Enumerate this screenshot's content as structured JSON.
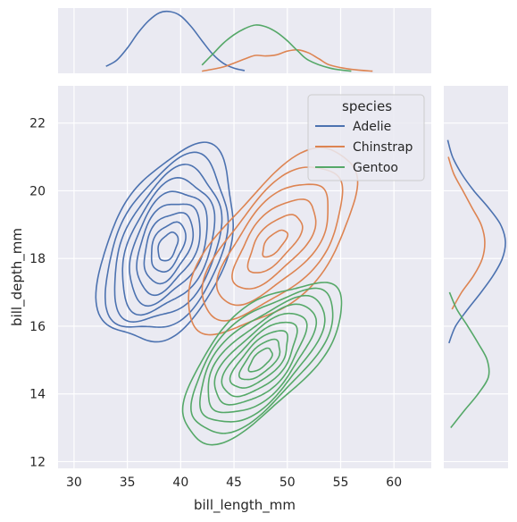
{
  "chart_data": {
    "type": "kde-jointplot",
    "xlabel": "bill_length_mm",
    "ylabel": "bill_depth_mm",
    "xlim": [
      28.5,
      63.5
    ],
    "ylim": [
      11.8,
      23.1
    ],
    "x_ticks": [
      30,
      35,
      40,
      45,
      50,
      55,
      60
    ],
    "y_ticks": [
      12,
      14,
      16,
      18,
      20,
      22
    ],
    "grid": true,
    "legend": {
      "title": "species",
      "placement": "top-right",
      "entries": [
        "Adelie",
        "Chinstrap",
        "Gentoo"
      ]
    },
    "series": [
      {
        "name": "Adelie",
        "color": "#4c72b0",
        "center": [
          38.8,
          18.35
        ],
        "sd": [
          2.65,
          1.2
        ],
        "corr": 0.4,
        "contour_levels": 9,
        "marginal_x": [
          [
            33,
            0.1
          ],
          [
            34,
            0.2
          ],
          [
            35,
            0.4
          ],
          [
            36,
            0.65
          ],
          [
            37,
            0.85
          ],
          [
            38,
            0.98
          ],
          [
            39,
            1.0
          ],
          [
            40,
            0.93
          ],
          [
            41,
            0.75
          ],
          [
            42,
            0.52
          ],
          [
            43,
            0.3
          ],
          [
            44,
            0.15
          ],
          [
            45,
            0.07
          ],
          [
            46,
            0.03
          ]
        ],
        "marginal_y": [
          [
            15.5,
            0.07
          ],
          [
            16,
            0.18
          ],
          [
            16.5,
            0.38
          ],
          [
            17,
            0.6
          ],
          [
            17.5,
            0.8
          ],
          [
            18,
            0.95
          ],
          [
            18.5,
            1.0
          ],
          [
            19,
            0.92
          ],
          [
            19.5,
            0.72
          ],
          [
            20,
            0.48
          ],
          [
            20.5,
            0.28
          ],
          [
            21,
            0.13
          ],
          [
            21.5,
            0.05
          ]
        ]
      },
      {
        "name": "Chinstrap",
        "color": "#dd8452",
        "center": [
          48.8,
          18.45
        ],
        "sd": [
          3.3,
          1.13
        ],
        "corr": 0.65,
        "contour_levels": 6,
        "marginal_x": [
          [
            42,
            0.02
          ],
          [
            44,
            0.09
          ],
          [
            46,
            0.22
          ],
          [
            47,
            0.28
          ],
          [
            48,
            0.27
          ],
          [
            49,
            0.29
          ],
          [
            50,
            0.35
          ],
          [
            51,
            0.37
          ],
          [
            52,
            0.32
          ],
          [
            53,
            0.22
          ],
          [
            54,
            0.12
          ],
          [
            56,
            0.05
          ],
          [
            58,
            0.02
          ]
        ],
        "marginal_y": [
          [
            16.5,
            0.12
          ],
          [
            17,
            0.28
          ],
          [
            17.5,
            0.48
          ],
          [
            18,
            0.62
          ],
          [
            18.5,
            0.66
          ],
          [
            19,
            0.6
          ],
          [
            19.5,
            0.45
          ],
          [
            20,
            0.3
          ],
          [
            20.5,
            0.15
          ],
          [
            21,
            0.06
          ]
        ]
      },
      {
        "name": "Gentoo",
        "color": "#55a868",
        "center": [
          47.5,
          15.0
        ],
        "sd": [
          3.1,
          0.98
        ],
        "corr": 0.66,
        "contour_levels": 9,
        "marginal_x": [
          [
            42,
            0.12
          ],
          [
            43,
            0.3
          ],
          [
            44,
            0.48
          ],
          [
            45,
            0.62
          ],
          [
            46,
            0.72
          ],
          [
            47,
            0.78
          ],
          [
            48,
            0.75
          ],
          [
            49,
            0.66
          ],
          [
            50,
            0.52
          ],
          [
            51,
            0.35
          ],
          [
            52,
            0.2
          ],
          [
            54,
            0.07
          ],
          [
            56,
            0.02
          ]
        ],
        "marginal_y": [
          [
            13,
            0.1
          ],
          [
            13.5,
            0.32
          ],
          [
            14,
            0.55
          ],
          [
            14.5,
            0.72
          ],
          [
            15,
            0.7
          ],
          [
            15.5,
            0.55
          ],
          [
            16,
            0.38
          ],
          [
            16.5,
            0.2
          ],
          [
            17,
            0.08
          ]
        ]
      }
    ]
  }
}
